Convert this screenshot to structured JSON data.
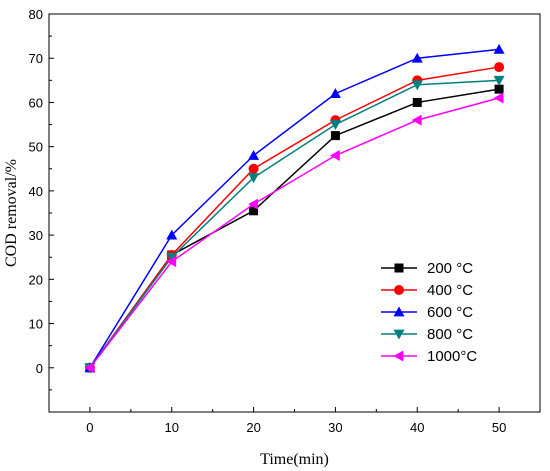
{
  "chart_data": {
    "type": "line",
    "xlabel": "Time(min)",
    "ylabel": "COD removal/%",
    "x": [
      0,
      10,
      20,
      30,
      40,
      50
    ],
    "xlim": [
      -5,
      55
    ],
    "ylim": [
      -10,
      80
    ],
    "xticks": [
      "0",
      "10",
      "20",
      "30",
      "40",
      "50"
    ],
    "yticks": [
      "0",
      "10",
      "20",
      "30",
      "40",
      "50",
      "60",
      "70",
      "80"
    ],
    "legend_position": "lower-right",
    "grid": false,
    "series": [
      {
        "name": "200  °C",
        "color": "#000000",
        "marker": "square",
        "values": [
          0,
          25.5,
          35.5,
          52.5,
          60,
          63
        ]
      },
      {
        "name": "400  °C",
        "color": "#ff0000",
        "marker": "circle",
        "values": [
          0,
          25.5,
          45,
          56,
          65,
          68
        ]
      },
      {
        "name": "600  °C",
        "color": "#0000ff",
        "marker": "triangle-up",
        "values": [
          0,
          30,
          48,
          62,
          70,
          72
        ]
      },
      {
        "name": "800  °C",
        "color": "#008080",
        "marker": "triangle-down",
        "values": [
          0,
          25,
          43,
          55,
          64,
          65
        ]
      },
      {
        "name": "1000°C",
        "color": "#ff00ff",
        "marker": "triangle-left",
        "values": [
          0,
          24,
          37,
          48,
          56,
          61
        ]
      }
    ]
  }
}
